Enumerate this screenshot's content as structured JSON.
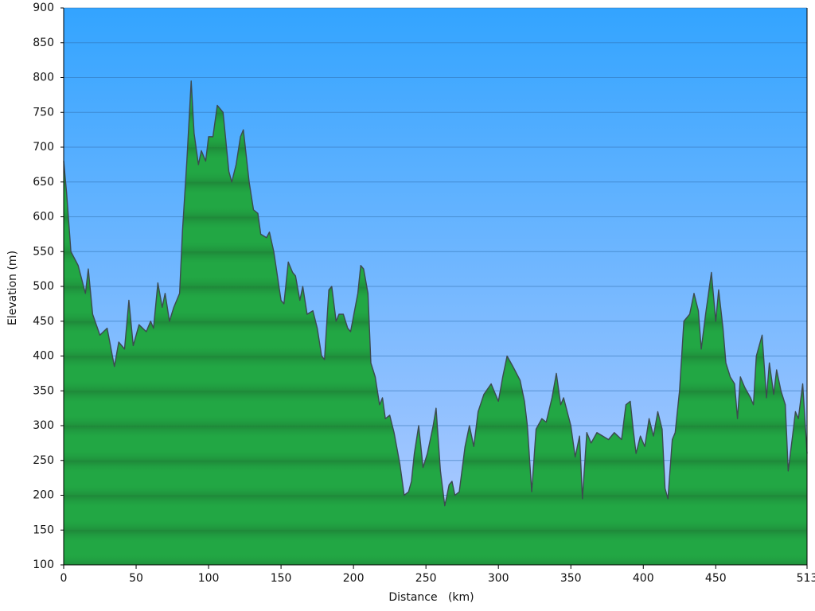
{
  "chart_data": {
    "type": "area",
    "xlabel": "Distance   (km)",
    "ylabel": "Elevation (m)",
    "xlim": [
      0,
      513
    ],
    "ylim": [
      100,
      900
    ],
    "xticks": [
      0,
      50,
      100,
      150,
      200,
      250,
      300,
      350,
      400,
      450,
      513
    ],
    "yticks": [
      100,
      150,
      200,
      250,
      300,
      350,
      400,
      450,
      500,
      550,
      600,
      650,
      700,
      750,
      800,
      850,
      900
    ],
    "grid": true,
    "color": "#1fa33f",
    "x": [
      0,
      2,
      5,
      10,
      15,
      17,
      20,
      25,
      30,
      35,
      38,
      42,
      45,
      48,
      52,
      57,
      60,
      62,
      65,
      68,
      70,
      73,
      76,
      80,
      82,
      85,
      88,
      90,
      93,
      95,
      98,
      100,
      103,
      106,
      110,
      114,
      116,
      119,
      122,
      124,
      128,
      131,
      134,
      136,
      140,
      142,
      145,
      150,
      152,
      155,
      158,
      160,
      163,
      165,
      168,
      172,
      175,
      178,
      180,
      183,
      185,
      188,
      190,
      193,
      196,
      198,
      203,
      205,
      207,
      210,
      212,
      215,
      218,
      220,
      222,
      225,
      228,
      232,
      235,
      238,
      240,
      242,
      245,
      248,
      251,
      255,
      257,
      260,
      263,
      266,
      268,
      270,
      273,
      277,
      280,
      283,
      286,
      290,
      295,
      300,
      303,
      306,
      310,
      315,
      318,
      320,
      323,
      326,
      330,
      333,
      337,
      340,
      343,
      345,
      350,
      353,
      356,
      358,
      361,
      364,
      368,
      372,
      376,
      380,
      385,
      388,
      391,
      393,
      395,
      398,
      401,
      404,
      407,
      410,
      413,
      415,
      417,
      420,
      422,
      425,
      428,
      432,
      435,
      438,
      440,
      443,
      447,
      450,
      452,
      455,
      457,
      460,
      463,
      465,
      467,
      470,
      474,
      476,
      478,
      482,
      485,
      487,
      490,
      492,
      495,
      498,
      500,
      503,
      505,
      507,
      510,
      513
    ],
    "values": [
      680,
      635,
      550,
      530,
      490,
      525,
      460,
      430,
      440,
      385,
      420,
      410,
      480,
      415,
      445,
      435,
      450,
      440,
      505,
      470,
      490,
      450,
      470,
      490,
      580,
      680,
      795,
      720,
      675,
      695,
      680,
      715,
      715,
      760,
      750,
      665,
      650,
      675,
      715,
      725,
      650,
      610,
      605,
      575,
      570,
      578,
      550,
      480,
      475,
      535,
      520,
      515,
      480,
      500,
      460,
      465,
      440,
      400,
      395,
      495,
      500,
      450,
      460,
      460,
      440,
      435,
      490,
      530,
      525,
      490,
      390,
      370,
      330,
      340,
      310,
      315,
      290,
      245,
      200,
      205,
      220,
      260,
      300,
      240,
      260,
      300,
      325,
      235,
      185,
      215,
      220,
      200,
      205,
      270,
      300,
      270,
      320,
      345,
      360,
      335,
      370,
      400,
      385,
      365,
      335,
      300,
      205,
      295,
      310,
      305,
      340,
      375,
      330,
      340,
      300,
      255,
      285,
      195,
      290,
      275,
      290,
      285,
      280,
      290,
      280,
      330,
      335,
      295,
      260,
      285,
      270,
      310,
      285,
      320,
      295,
      210,
      195,
      280,
      290,
      350,
      450,
      460,
      490,
      465,
      410,
      460,
      520,
      450,
      495,
      440,
      390,
      370,
      360,
      310,
      370,
      355,
      340,
      330,
      400,
      430,
      340,
      390,
      345,
      380,
      350,
      330,
      235,
      285,
      320,
      310,
      360,
      260
    ]
  }
}
